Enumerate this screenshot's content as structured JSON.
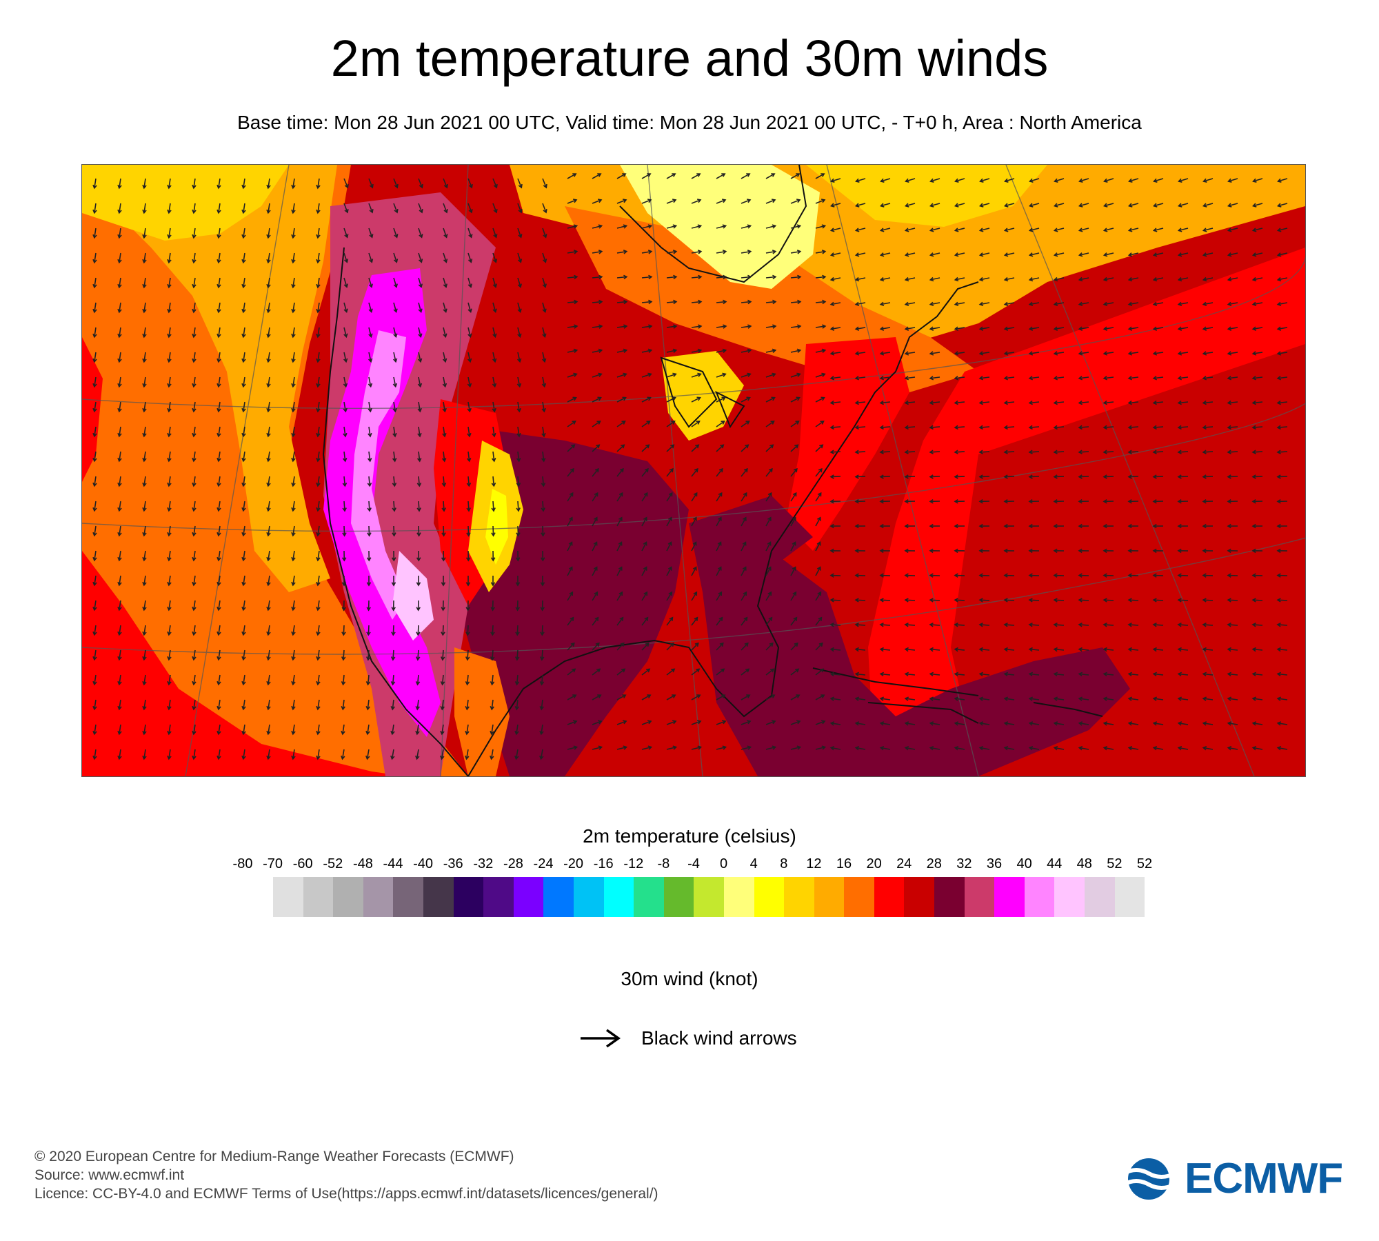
{
  "title": "2m temperature and 30m winds",
  "subtitle": "Base time: Mon 28 Jun 2021 00 UTC, Valid time: Mon 28 Jun 2021 00 UTC, - T+0 h, Area : North America",
  "colorbar": {
    "title": "2m temperature (celsius)",
    "ticks": [
      "-80",
      "-70",
      "-60",
      "-52",
      "-48",
      "-44",
      "-40",
      "-36",
      "-32",
      "-28",
      "-24",
      "-20",
      "-16",
      "-12",
      "-8",
      "-4",
      "0",
      "4",
      "8",
      "12",
      "16",
      "20",
      "24",
      "28",
      "32",
      "36",
      "40",
      "44",
      "48",
      "52",
      "52"
    ],
    "colors": [
      "#e0e0e0",
      "#c8c8c8",
      "#b0b0b0",
      "#a595a8",
      "#776578",
      "#45364a",
      "#2c0060",
      "#4f0a87",
      "#7b00ff",
      "#0078ff",
      "#00c2f5",
      "#00ffff",
      "#24e08c",
      "#65ba2c",
      "#c4e82e",
      "#ffff7a",
      "#ffff00",
      "#ffd400",
      "#ffab00",
      "#ff6e00",
      "#ff0000",
      "#c90000",
      "#7a0030",
      "#cc3a6a",
      "#ff00ff",
      "#ff84ff",
      "#ffc4ff",
      "#e2cce2",
      "#e4e4e4"
    ]
  },
  "wind": {
    "title": "30m wind (knot)",
    "legend_label": "Black wind arrows"
  },
  "footer": {
    "copyright": "© 2020 European Centre for Medium-Range Weather Forecasts (ECMWF)",
    "source": "Source: www.ecmwf.int",
    "licence": "Licence: CC-BY-4.0 and ECMWF Terms of Use(https://apps.ecmwf.int/datasets/licences/general/)"
  },
  "logo": {
    "text": "ECMWF",
    "color": "#0b5ea5"
  }
}
